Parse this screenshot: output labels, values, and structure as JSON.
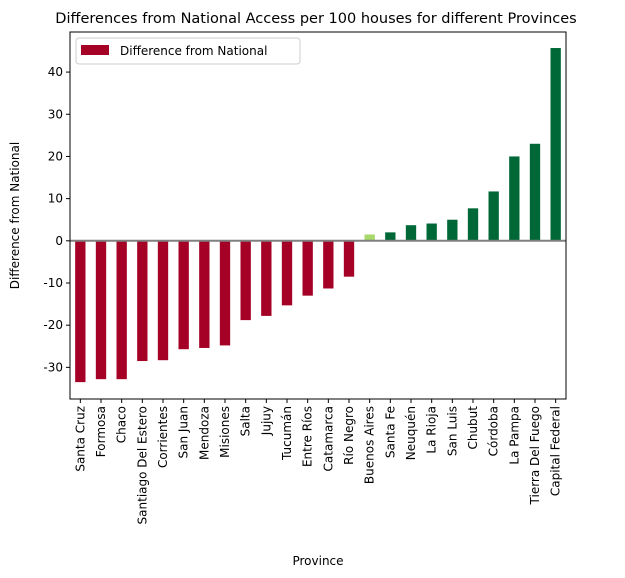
{
  "chart_data": {
    "type": "bar",
    "title": "Differences from National Access per 100 houses for different Provinces",
    "xlabel": "Province",
    "ylabel": "Difference from National",
    "ylim": [
      -37.5,
      49.5
    ],
    "yticks": [
      -30,
      -20,
      -10,
      0,
      10,
      20,
      30,
      40
    ],
    "grid": false,
    "legend": {
      "placement": "top-left",
      "entries": [
        "Difference from National"
      ]
    },
    "colors": {
      "negative": "#a50026",
      "small_positive": "#a6d96a",
      "positive": "#006837",
      "zero_line": "#808080"
    },
    "categories": [
      "Santa Cruz",
      "Formosa",
      "Chaco",
      "Santiago Del Estero",
      "Corrientes",
      "San Juan",
      "Mendoza",
      "Misiones",
      "Salta",
      "Jujuy",
      "Tucumán",
      "Entre Ríos",
      "Catamarca",
      "Río Negro",
      "Buenos Aires",
      "Santa Fe",
      "Neuquén",
      "La Rioja",
      "San Luis",
      "Chubut",
      "Córdoba",
      "La Pampa",
      "Tierra Del Fuego",
      "Capital Federal"
    ],
    "series": [
      {
        "name": "Difference from National",
        "values": [
          -33.5,
          -32.8,
          -32.8,
          -28.5,
          -28.3,
          -25.7,
          -25.4,
          -24.8,
          -18.8,
          -17.8,
          -15.3,
          -13.0,
          -11.3,
          -8.5,
          1.5,
          2.0,
          3.7,
          4.1,
          5.0,
          7.7,
          11.7,
          20.0,
          23.0,
          45.7
        ]
      }
    ]
  }
}
